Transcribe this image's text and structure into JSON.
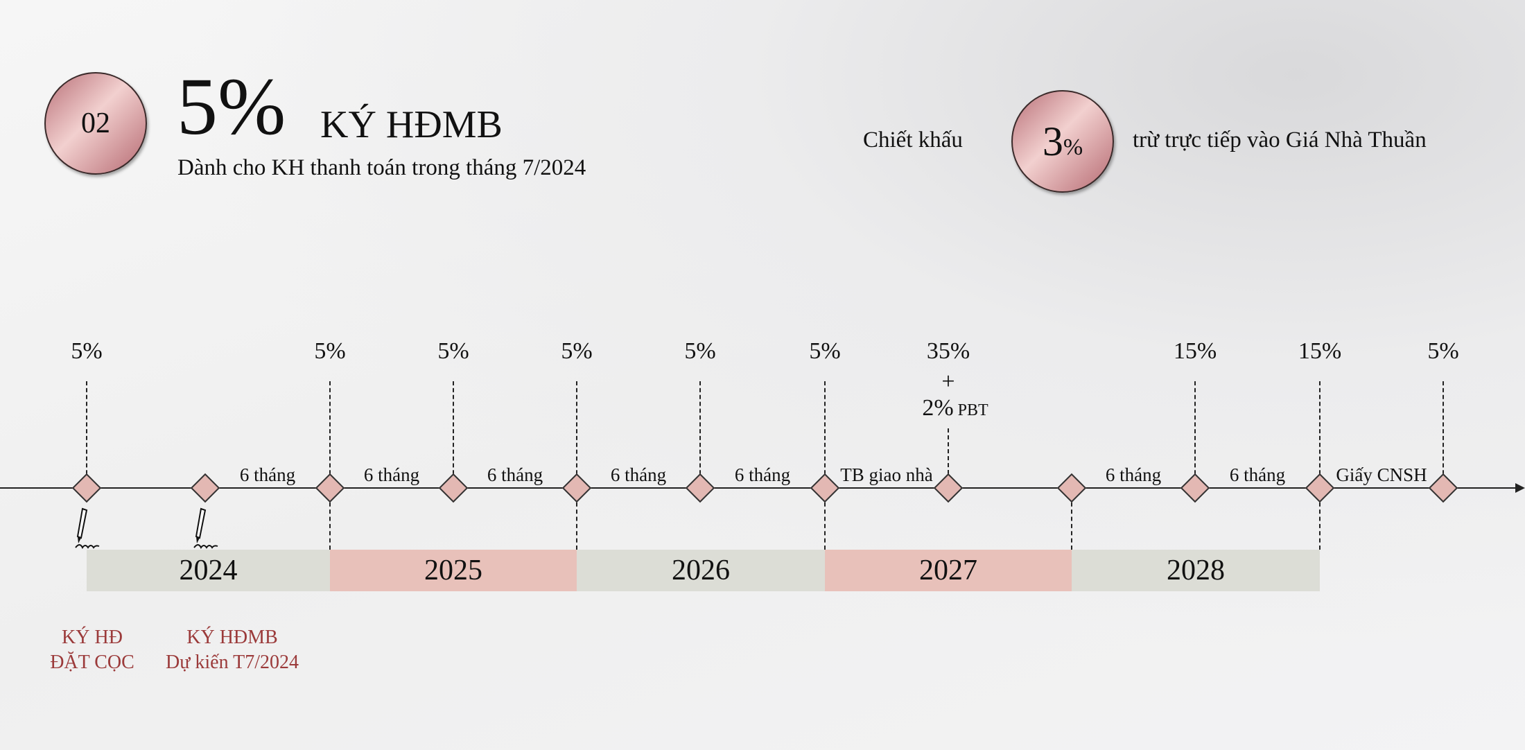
{
  "header": {
    "badge": "02",
    "big_percent": "5%",
    "title": "KÝ HĐMB",
    "subtitle": "Dành cho KH thanh toán trong tháng 7/2024"
  },
  "discount": {
    "prefix": "Chiết khấu",
    "value": "3",
    "unit": "%",
    "suffix": "trừ trực tiếp vào Giá Nhà Thuần"
  },
  "milestones": [
    {
      "percent": "5%",
      "dash_below": false
    },
    {
      "percent": "",
      "dash_below": false
    },
    {
      "percent": "5%",
      "dash_below": true
    },
    {
      "percent": "5%",
      "dash_below": false
    },
    {
      "percent": "5%",
      "dash_below": true
    },
    {
      "percent": "5%",
      "dash_below": false
    },
    {
      "percent": "5%",
      "dash_below": true
    },
    {
      "percent": "35%",
      "plus": "+",
      "extra": "2%",
      "extra_note": "PBT",
      "dash_below": false
    },
    {
      "percent": "",
      "dash_below": true
    },
    {
      "percent": "15%",
      "dash_below": false
    },
    {
      "percent": "15%",
      "dash_below": true
    },
    {
      "percent": "5%",
      "dash_below": false
    }
  ],
  "intervals": [
    "",
    "6 tháng",
    "6 tháng",
    "6 tháng",
    "6 tháng",
    "6 tháng",
    "TB giao nhà",
    "",
    "6 tháng",
    "6 tháng",
    "Giấy CNSH"
  ],
  "years": [
    {
      "label": "2024",
      "color": "#dcddd6"
    },
    {
      "label": "2025",
      "color": "#e8c1ba"
    },
    {
      "label": "2026",
      "color": "#dcddd6"
    },
    {
      "label": "2027",
      "color": "#e8c1ba"
    },
    {
      "label": "2028",
      "color": "#dcddd6"
    }
  ],
  "events": [
    {
      "line1": "KÝ HĐ",
      "line2": "ĐẶT CỌC"
    },
    {
      "line1": "KÝ HĐMB",
      "line2": "Dự kiến T7/2024"
    }
  ]
}
